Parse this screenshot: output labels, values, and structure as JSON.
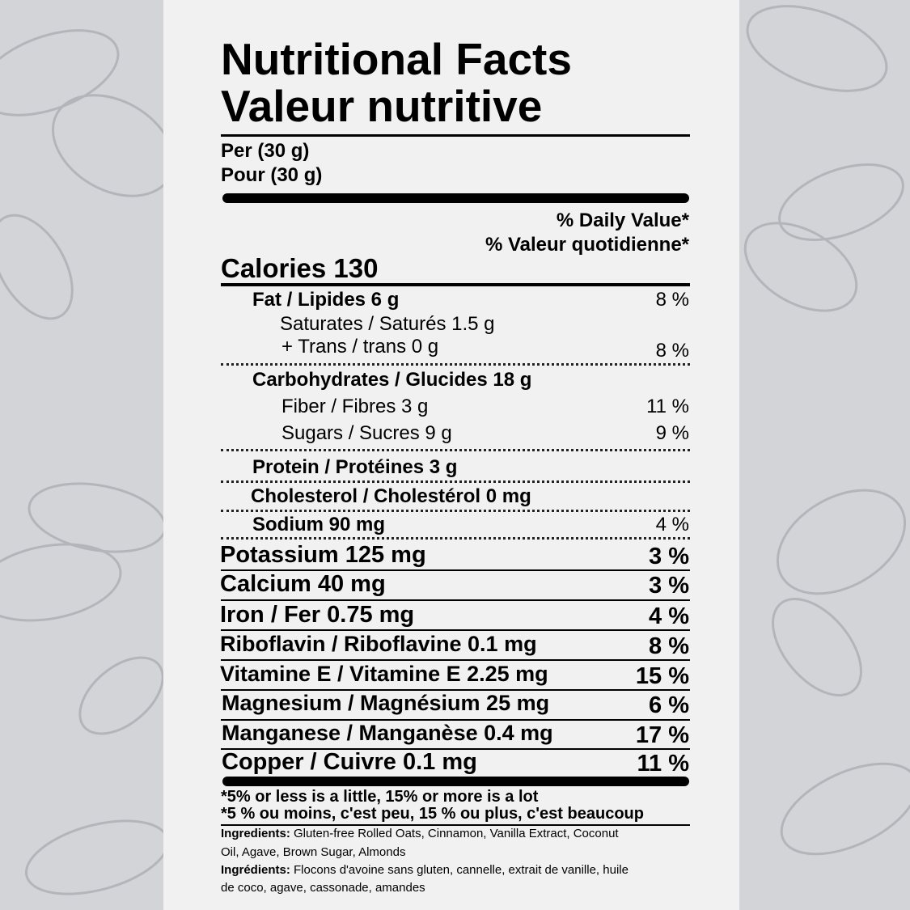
{
  "title_en": "Nutritional Facts",
  "title_fr": "Valeur nutritive",
  "serving_en": "Per (30 g)",
  "serving_fr": "Pour (30 g)",
  "dv_en": "% Daily Value*",
  "dv_fr": "% Valeur quotidienne*",
  "calories": "Calories 130",
  "nutrients": [
    {
      "label": "Fat / Lipides 6 g",
      "dv": "8 %"
    },
    {
      "label": "Saturates / Saturés 1.5 g",
      "dv": ""
    },
    {
      "label": "+ Trans / trans 0 g",
      "dv": "8 %"
    },
    {
      "label": "Carbohydrates / Glucides 18 g",
      "dv": ""
    },
    {
      "label": "Fiber / Fibres 3 g",
      "dv": "11 %"
    },
    {
      "label": "Sugars / Sucres 9 g",
      "dv": "9 %"
    },
    {
      "label": "Protein / Protéines 3 g",
      "dv": ""
    },
    {
      "label": "Cholesterol / Cholestérol 0 mg",
      "dv": ""
    },
    {
      "label": "Sodium 90 mg",
      "dv": "4 %"
    }
  ],
  "minerals": [
    {
      "label": "Potassium 125 mg",
      "dv": "3 %"
    },
    {
      "label": "Calcium 40 mg",
      "dv": "3 %"
    },
    {
      "label": "Iron / Fer 0.75 mg",
      "dv": "4 %"
    },
    {
      "label": "Riboflavin / Riboflavine 0.1 mg",
      "dv": "8 %"
    },
    {
      "label": "Vitamine E / Vitamine E 2.25 mg",
      "dv": "15 %"
    },
    {
      "label": "Magnesium / Magnésium 25 mg",
      "dv": "6 %"
    },
    {
      "label": "Manganese / Manganèse 0.4 mg",
      "dv": "17 %"
    },
    {
      "label": "Copper / Cuivre 0.1 mg",
      "dv": "11 %"
    }
  ],
  "footnote_en": "*5% or less is a little, 15% or more is a lot",
  "footnote_fr": "*5 % ou moins, c'est peu, 15 % ou plus, c'est beaucoup",
  "ingredients_en": {
    "label": "Ingredients:",
    "line1": " Gluten-free Rolled Oats, Cinnamon, Vanilla Extract, Coconut",
    "line2": "Oil, Agave, Brown Sugar, Almonds"
  },
  "ingredients_fr": {
    "label": "Ingrédients:",
    "line1": " Flocons d'avoine sans gluten, cannelle, extrait de vanille, huile",
    "line2": "de coco, agave, cassonade, amandes"
  },
  "colors": {
    "background": "#d3d4d8",
    "panel": "#f1f1f1",
    "ink": "#000000",
    "nut_outline": "#b4b5ba"
  }
}
